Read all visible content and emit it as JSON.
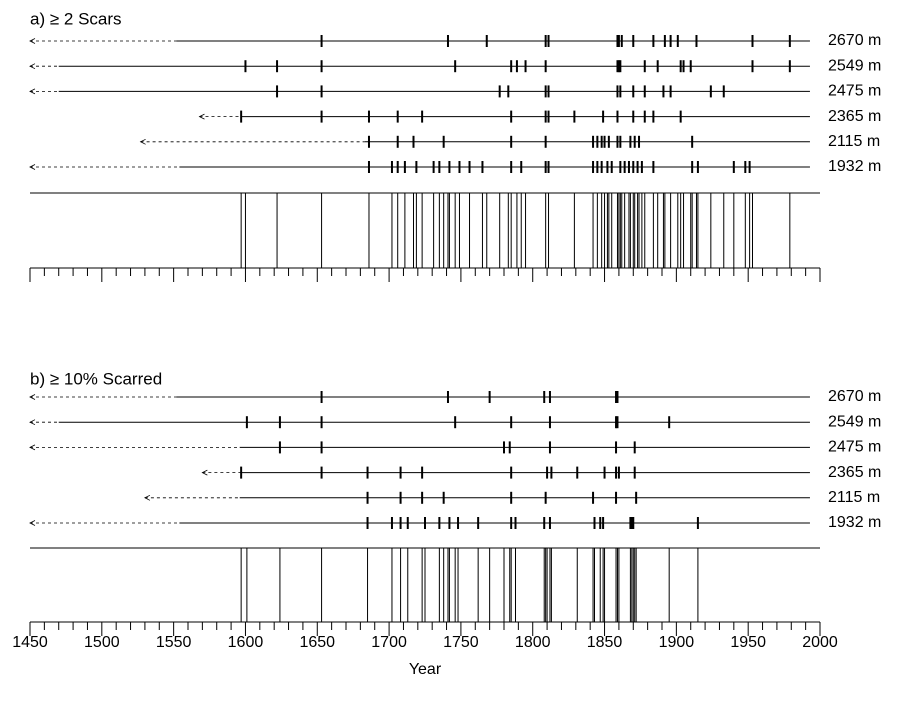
{
  "chart_data": [
    {
      "type": "fire-history",
      "title": "a) ≥ 2 Scars",
      "xlim": [
        1450,
        2000
      ],
      "xticks": [
        1450,
        1500,
        1550,
        1600,
        1650,
        1700,
        1750,
        1800,
        1850,
        1900,
        1950,
        2000
      ],
      "xminorticks": [
        1460,
        1470,
        1480,
        1490,
        1510,
        1520,
        1530,
        1540,
        1560,
        1570,
        1580,
        1590,
        1610,
        1620,
        1630,
        1640,
        1660,
        1670,
        1680,
        1690,
        1710,
        1720,
        1730,
        1740,
        1760,
        1770,
        1780,
        1790,
        1810,
        1820,
        1830,
        1840,
        1860,
        1870,
        1880,
        1890,
        1910,
        1920,
        1930,
        1940,
        1960,
        1970,
        1980,
        1990
      ],
      "sites": [
        {
          "name": "2670 m",
          "earliest": 1450,
          "recording_start": 1552,
          "end": 1993,
          "events": [
            1653,
            1741,
            1768,
            1809,
            1811,
            1859,
            1860,
            1862,
            1870,
            1884,
            1892,
            1896,
            1901,
            1914,
            1953,
            1979
          ]
        },
        {
          "name": "2549 m",
          "earliest": 1450,
          "recording_start": 1470,
          "end": 1993,
          "events": [
            1600,
            1622,
            1653,
            1746,
            1785,
            1789,
            1795,
            1809,
            1859,
            1860,
            1861,
            1878,
            1887,
            1903,
            1905,
            1910,
            1953,
            1979
          ]
        },
        {
          "name": "2475 m",
          "earliest": 1450,
          "recording_start": 1470,
          "end": 1993,
          "events": [
            1622,
            1653,
            1777,
            1783,
            1809,
            1811,
            1859,
            1861,
            1870,
            1878,
            1891,
            1896,
            1924,
            1933
          ]
        },
        {
          "name": "2365 m",
          "earliest": 1568,
          "recording_start": 1597,
          "end": 1993,
          "events": [
            1597,
            1653,
            1686,
            1706,
            1723,
            1785,
            1809,
            1811,
            1829,
            1849,
            1859,
            1870,
            1878,
            1884,
            1903
          ]
        },
        {
          "name": "2115 m",
          "earliest": 1527,
          "recording_start": 1683,
          "end": 1993,
          "events": [
            1686,
            1706,
            1717,
            1738,
            1785,
            1809,
            1842,
            1845,
            1848,
            1850,
            1853,
            1859,
            1861,
            1868,
            1871,
            1874,
            1911
          ]
        },
        {
          "name": "1932 m",
          "earliest": 1450,
          "recording_start": 1554,
          "end": 1993,
          "events": [
            1686,
            1702,
            1706,
            1711,
            1719,
            1731,
            1735,
            1742,
            1749,
            1756,
            1765,
            1785,
            1792,
            1809,
            1811,
            1842,
            1845,
            1848,
            1852,
            1855,
            1861,
            1864,
            1867,
            1870,
            1873,
            1876,
            1884,
            1911,
            1915,
            1940,
            1948,
            1951
          ]
        }
      ],
      "composite": [
        1597,
        1600,
        1622,
        1653,
        1686,
        1702,
        1706,
        1711,
        1717,
        1719,
        1723,
        1731,
        1735,
        1738,
        1741,
        1742,
        1746,
        1749,
        1756,
        1765,
        1768,
        1777,
        1783,
        1785,
        1789,
        1792,
        1795,
        1809,
        1811,
        1829,
        1842,
        1845,
        1848,
        1850,
        1852,
        1853,
        1855,
        1859,
        1860,
        1861,
        1862,
        1864,
        1867,
        1868,
        1870,
        1871,
        1873,
        1874,
        1876,
        1878,
        1884,
        1887,
        1891,
        1892,
        1896,
        1901,
        1903,
        1905,
        1910,
        1911,
        1914,
        1915,
        1924,
        1933,
        1940,
        1948,
        1951,
        1953,
        1979
      ]
    },
    {
      "type": "fire-history",
      "title": "b) ≥ 10% Scarred",
      "xlabel": "Year",
      "xlim": [
        1450,
        2000
      ],
      "xticks": [
        1450,
        1500,
        1550,
        1600,
        1650,
        1700,
        1750,
        1800,
        1850,
        1900,
        1950,
        2000
      ],
      "xminorticks": [
        1460,
        1470,
        1480,
        1490,
        1510,
        1520,
        1530,
        1540,
        1560,
        1570,
        1580,
        1590,
        1610,
        1620,
        1630,
        1640,
        1660,
        1670,
        1680,
        1690,
        1710,
        1720,
        1730,
        1740,
        1760,
        1770,
        1780,
        1790,
        1810,
        1820,
        1830,
        1840,
        1860,
        1870,
        1880,
        1890,
        1910,
        1920,
        1930,
        1940,
        1960,
        1970,
        1980,
        1990
      ],
      "sites": [
        {
          "name": "2670 m",
          "earliest": 1450,
          "recording_start": 1552,
          "end": 1993,
          "events": [
            1653,
            1741,
            1770,
            1808,
            1812,
            1858,
            1859
          ]
        },
        {
          "name": "2549 m",
          "earliest": 1450,
          "recording_start": 1470,
          "end": 1993,
          "events": [
            1601,
            1624,
            1653,
            1746,
            1785,
            1812,
            1858,
            1859,
            1895
          ]
        },
        {
          "name": "2475 m",
          "earliest": 1450,
          "recording_start": 1596,
          "end": 1993,
          "events": [
            1624,
            1653,
            1780,
            1784,
            1812,
            1858,
            1871
          ]
        },
        {
          "name": "2365 m",
          "earliest": 1570,
          "recording_start": 1597,
          "end": 1993,
          "events": [
            1597,
            1653,
            1685,
            1708,
            1723,
            1785,
            1810,
            1813,
            1831,
            1850,
            1858,
            1860,
            1871
          ]
        },
        {
          "name": "2115 m",
          "earliest": 1530,
          "recording_start": 1596,
          "end": 1993,
          "events": [
            1685,
            1708,
            1723,
            1738,
            1785,
            1809,
            1842,
            1858,
            1872
          ]
        },
        {
          "name": "1932 m",
          "earliest": 1450,
          "recording_start": 1554,
          "end": 1993,
          "events": [
            1685,
            1702,
            1708,
            1713,
            1725,
            1735,
            1742,
            1748,
            1762,
            1785,
            1788,
            1808,
            1812,
            1843,
            1847,
            1849,
            1868,
            1869,
            1870,
            1915
          ]
        }
      ],
      "composite": [
        1597,
        1601,
        1624,
        1653,
        1685,
        1702,
        1708,
        1713,
        1723,
        1725,
        1735,
        1738,
        1741,
        1742,
        1746,
        1748,
        1762,
        1770,
        1780,
        1784,
        1785,
        1788,
        1808,
        1809,
        1810,
        1812,
        1813,
        1831,
        1842,
        1843,
        1847,
        1849,
        1850,
        1858,
        1859,
        1860,
        1868,
        1869,
        1870,
        1871,
        1872,
        1895,
        1915
      ]
    }
  ]
}
